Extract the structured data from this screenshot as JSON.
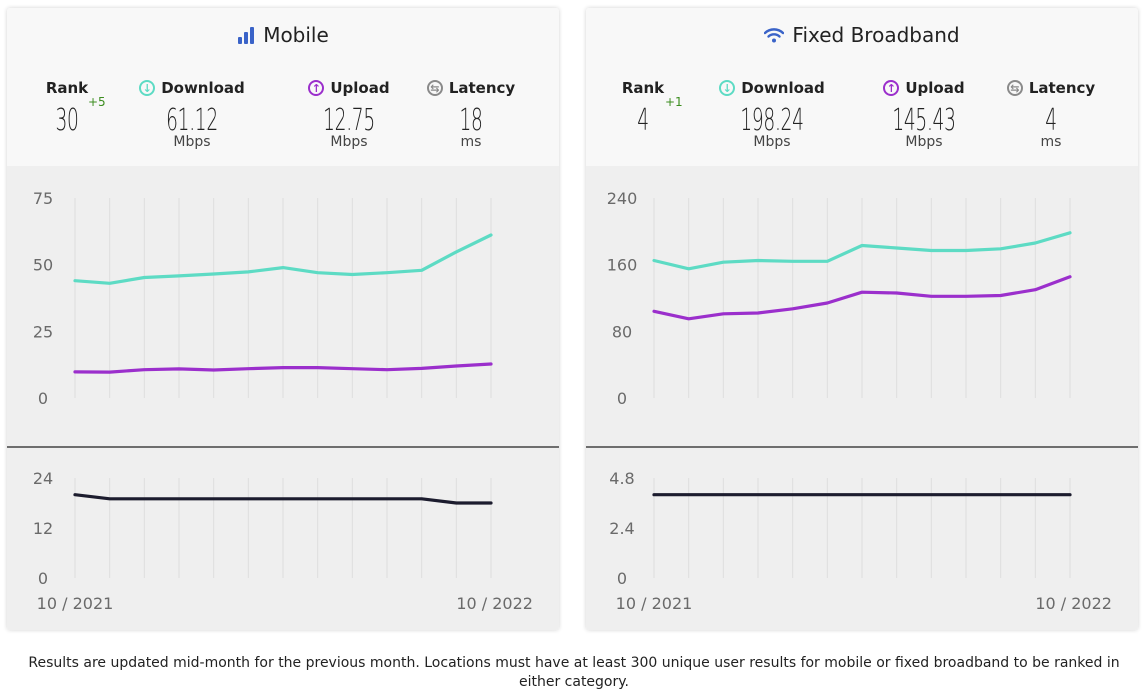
{
  "footnote": "Results are updated mid-month for the previous month. Locations must have at least 300 unique user results for mobile or fixed broadband to be ranked in either category.",
  "colors": {
    "download": "#5ddbc4",
    "upload": "#9b2fcc",
    "latency": "#1c1c2e",
    "plot_bg": "#efefef",
    "header_bg": "#f8f8f8"
  },
  "panels": [
    {
      "title": "Mobile",
      "icon": "signal-bars-icon",
      "rank": {
        "label": "Rank",
        "value": "30",
        "change": "+5"
      },
      "download": {
        "label": "Download",
        "value": "61.12",
        "unit": "Mbps"
      },
      "upload": {
        "label": "Upload",
        "value": "12.75",
        "unit": "Mbps"
      },
      "latency": {
        "label": "Latency",
        "value": "18",
        "unit": "ms"
      }
    },
    {
      "title": "Fixed Broadband",
      "icon": "wifi-icon",
      "rank": {
        "label": "Rank",
        "value": "4",
        "change": "+1"
      },
      "download": {
        "label": "Download",
        "value": "198.24",
        "unit": "Mbps"
      },
      "upload": {
        "label": "Upload",
        "value": "145.43",
        "unit": "Mbps"
      },
      "latency": {
        "label": "Latency",
        "value": "4",
        "unit": "ms"
      }
    }
  ],
  "chart_data": [
    {
      "type": "line",
      "panel": "Mobile",
      "x": [
        "10 / 2021",
        "11 / 2021",
        "12 / 2021",
        "01 / 2022",
        "02 / 2022",
        "03 / 2022",
        "04 / 2022",
        "05 / 2022",
        "06 / 2022",
        "07 / 2022",
        "08 / 2022",
        "09 / 2022",
        "10 / 2022"
      ],
      "x_tick_labels": [
        "10 / 2021",
        "10 / 2022"
      ],
      "speed": {
        "ylim": [
          0,
          75
        ],
        "yticks": [
          "75",
          "50",
          "25",
          "0"
        ],
        "series": [
          {
            "name": "Download",
            "values": [
              44,
              43,
              45.2,
              45.8,
              46.5,
              47.3,
              48.9,
              47.0,
              46.3,
              47.0,
              47.9,
              54.8,
              61.12
            ]
          },
          {
            "name": "Upload",
            "values": [
              9.8,
              9.7,
              10.6,
              10.9,
              10.5,
              11.0,
              11.4,
              11.4,
              11.0,
              10.6,
              11.1,
              12.0,
              12.75
            ]
          }
        ]
      },
      "latency": {
        "ylim": [
          0,
          24
        ],
        "yticks": [
          "24",
          "12",
          "0"
        ],
        "series": [
          {
            "name": "Latency",
            "values": [
              20,
              19,
              19,
              19,
              19,
              19,
              19,
              19,
              19,
              19,
              19,
              18,
              18
            ]
          }
        ]
      }
    },
    {
      "type": "line",
      "panel": "Fixed Broadband",
      "x": [
        "10 / 2021",
        "11 / 2021",
        "12 / 2021",
        "01 / 2022",
        "02 / 2022",
        "03 / 2022",
        "04 / 2022",
        "05 / 2022",
        "06 / 2022",
        "07 / 2022",
        "08 / 2022",
        "09 / 2022",
        "10 / 2022"
      ],
      "x_tick_labels": [
        "10 / 2021",
        "10 / 2022"
      ],
      "speed": {
        "ylim": [
          0,
          240
        ],
        "yticks": [
          "240",
          "160",
          "80",
          "0"
        ],
        "series": [
          {
            "name": "Download",
            "values": [
              165,
              155,
              163,
              165,
              164,
              164,
              183,
              180,
              177,
              177,
              179,
              186,
              198.24
            ]
          },
          {
            "name": "Upload",
            "values": [
              104,
              95,
              101,
              102,
              107,
              114,
              127,
              126,
              122,
              122,
              123,
              130,
              145.43
            ]
          }
        ]
      },
      "latency": {
        "ylim": [
          0,
          4.8
        ],
        "yticks": [
          "4.8",
          "2.4",
          "0"
        ],
        "series": [
          {
            "name": "Latency",
            "values": [
              4,
              4,
              4,
              4,
              4,
              4,
              4,
              4,
              4,
              4,
              4,
              4,
              4
            ]
          }
        ]
      }
    }
  ]
}
